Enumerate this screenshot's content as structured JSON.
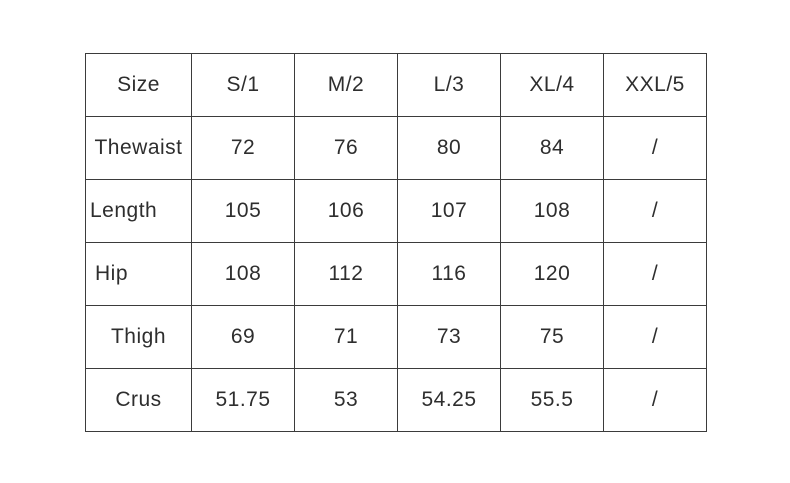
{
  "colors": {
    "background": "#ffffff",
    "border": "#3b3b3b",
    "text": "#2e2e2e"
  },
  "table": {
    "columns": [
      "Size",
      "S/1",
      "M/2",
      "L/3",
      "XL/4",
      "XXL/5"
    ],
    "rows": [
      {
        "label": "Thewaist",
        "values": [
          "72",
          "76",
          "80",
          "84",
          "/"
        ]
      },
      {
        "label": "Length",
        "values": [
          "105",
          "106",
          "107",
          "108",
          "/"
        ]
      },
      {
        "label": "Hip",
        "values": [
          "108",
          "112",
          "116",
          "120",
          "/"
        ]
      },
      {
        "label": "Thigh",
        "values": [
          "69",
          "71",
          "73",
          "75",
          "/"
        ]
      },
      {
        "label": "Crus",
        "values": [
          "51.75",
          "53",
          "54.25",
          "55.5",
          "/"
        ]
      }
    ]
  },
  "chart_data": {
    "type": "table",
    "title": "",
    "columns": [
      "Size",
      "S/1",
      "M/2",
      "L/3",
      "XL/4",
      "XXL/5"
    ],
    "rows": [
      [
        "Thewaist",
        72,
        76,
        80,
        84,
        "/"
      ],
      [
        "Length",
        105,
        106,
        107,
        108,
        "/"
      ],
      [
        "Hip",
        108,
        112,
        116,
        120,
        "/"
      ],
      [
        "Thigh",
        69,
        71,
        73,
        75,
        "/"
      ],
      [
        "Crus",
        51.75,
        53,
        54.25,
        55.5,
        "/"
      ]
    ]
  }
}
